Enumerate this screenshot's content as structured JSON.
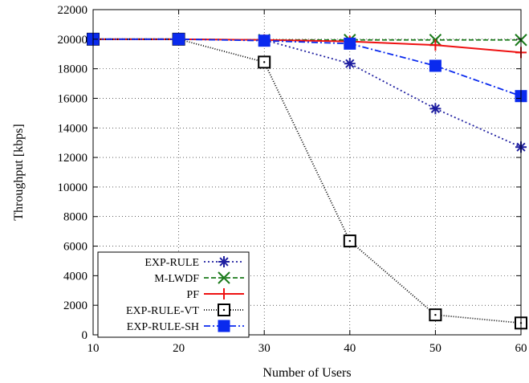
{
  "chart_data": {
    "type": "line",
    "xlabel": "Number of Users",
    "ylabel": "Throughput [kbps]",
    "x": [
      10,
      20,
      30,
      40,
      50,
      60
    ],
    "xlim": [
      10,
      60
    ],
    "ylim": [
      0,
      22000
    ],
    "xticks": [
      10,
      20,
      30,
      40,
      50,
      60
    ],
    "yticks": [
      0,
      2000,
      4000,
      6000,
      8000,
      10000,
      12000,
      14000,
      16000,
      18000,
      20000,
      22000
    ],
    "grid": true,
    "legend_position": "bottom-left",
    "series": [
      {
        "name": "EXP-RULE",
        "color": "#1f1fa0",
        "dash": "dotted",
        "marker": "asterisk",
        "values": [
          20000,
          20000,
          19950,
          18350,
          15300,
          12700
        ]
      },
      {
        "name": "M-LWDF",
        "color": "#1a7a1a",
        "dash": "dashed",
        "marker": "x",
        "values": [
          20000,
          20000,
          19950,
          19950,
          19950,
          19950
        ]
      },
      {
        "name": "PF",
        "color": "#ee1111",
        "dash": "solid",
        "marker": "plus",
        "values": [
          20000,
          20000,
          19950,
          19850,
          19600,
          19100
        ]
      },
      {
        "name": "EXP-RULE-VT",
        "color": "#000000",
        "dash": "dotted-fine",
        "marker": "open-square",
        "values": [
          20000,
          20000,
          18450,
          6350,
          1350,
          800
        ]
      },
      {
        "name": "EXP-RULE-SH",
        "color": "#0a2aee",
        "dash": "dashdot",
        "marker": "filled-square",
        "values": [
          20000,
          20000,
          19900,
          19700,
          18200,
          16150
        ]
      }
    ]
  }
}
